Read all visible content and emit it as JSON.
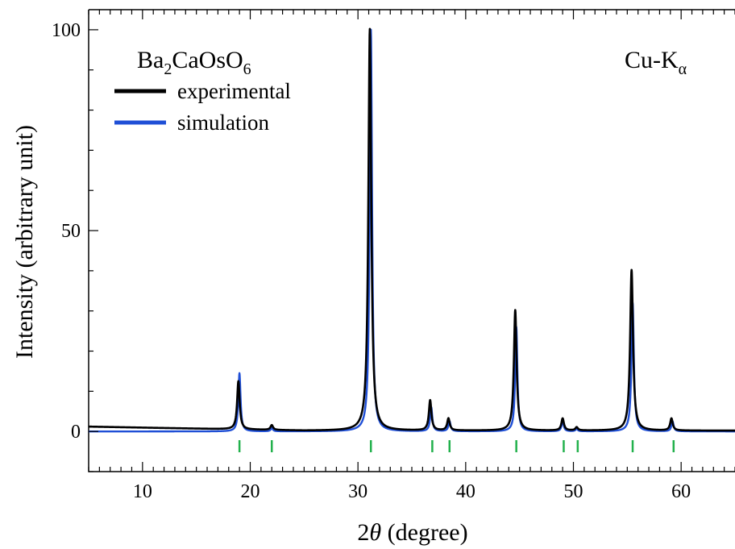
{
  "chart_data": {
    "type": "line",
    "compound": {
      "base": "Ba",
      "sub1": "2",
      "mid": "CaOsO",
      "sub2": "6"
    },
    "radiation": {
      "base": "Cu-K",
      "sub": "α"
    },
    "xlabel": {
      "main": "2",
      "theta": "θ",
      "unit": " (degree)"
    },
    "ylabel": "Intensity (arbitrary unit)",
    "xlim": [
      5,
      65
    ],
    "ylim": [
      -10,
      105
    ],
    "xticks": [
      10,
      20,
      30,
      40,
      50,
      60
    ],
    "yticks": [
      0,
      50,
      100
    ],
    "legend_position": "top-left",
    "series": [
      {
        "name": "experimental",
        "color": "#000000",
        "baseline": 1.2,
        "baseline_end": 0.2,
        "peaks": [
          {
            "x": 18.9,
            "height": 12,
            "width": 0.14
          },
          {
            "x": 22.0,
            "height": 1.2,
            "width": 0.14
          },
          {
            "x": 31.1,
            "height": 100,
            "width": 0.16
          },
          {
            "x": 36.7,
            "height": 7.5,
            "width": 0.14
          },
          {
            "x": 38.4,
            "height": 3,
            "width": 0.14
          },
          {
            "x": 44.6,
            "height": 30,
            "width": 0.15
          },
          {
            "x": 49.0,
            "height": 3,
            "width": 0.14
          },
          {
            "x": 50.3,
            "height": 0.8,
            "width": 0.14
          },
          {
            "x": 55.4,
            "height": 40,
            "width": 0.16
          },
          {
            "x": 59.1,
            "height": 3,
            "width": 0.14
          }
        ]
      },
      {
        "name": "simulation",
        "color": "#1f4fd6",
        "baseline": 0,
        "baseline_end": 0,
        "peaks": [
          {
            "x": 19.0,
            "height": 14.5,
            "width": 0.12
          },
          {
            "x": 22.0,
            "height": 0.8,
            "width": 0.12
          },
          {
            "x": 31.2,
            "height": 100,
            "width": 0.13
          },
          {
            "x": 36.8,
            "height": 6,
            "width": 0.12
          },
          {
            "x": 38.5,
            "height": 2.5,
            "width": 0.12
          },
          {
            "x": 44.7,
            "height": 26,
            "width": 0.12
          },
          {
            "x": 49.0,
            "height": 2.5,
            "width": 0.12
          },
          {
            "x": 50.3,
            "height": 0.6,
            "width": 0.12
          },
          {
            "x": 55.5,
            "height": 32,
            "width": 0.13
          },
          {
            "x": 59.2,
            "height": 2.5,
            "width": 0.12
          }
        ]
      }
    ],
    "bragg_markers": {
      "color": "#22b14c",
      "positions": [
        19.0,
        22.0,
        31.2,
        36.9,
        38.5,
        44.7,
        49.1,
        50.4,
        55.5,
        59.3
      ]
    }
  }
}
